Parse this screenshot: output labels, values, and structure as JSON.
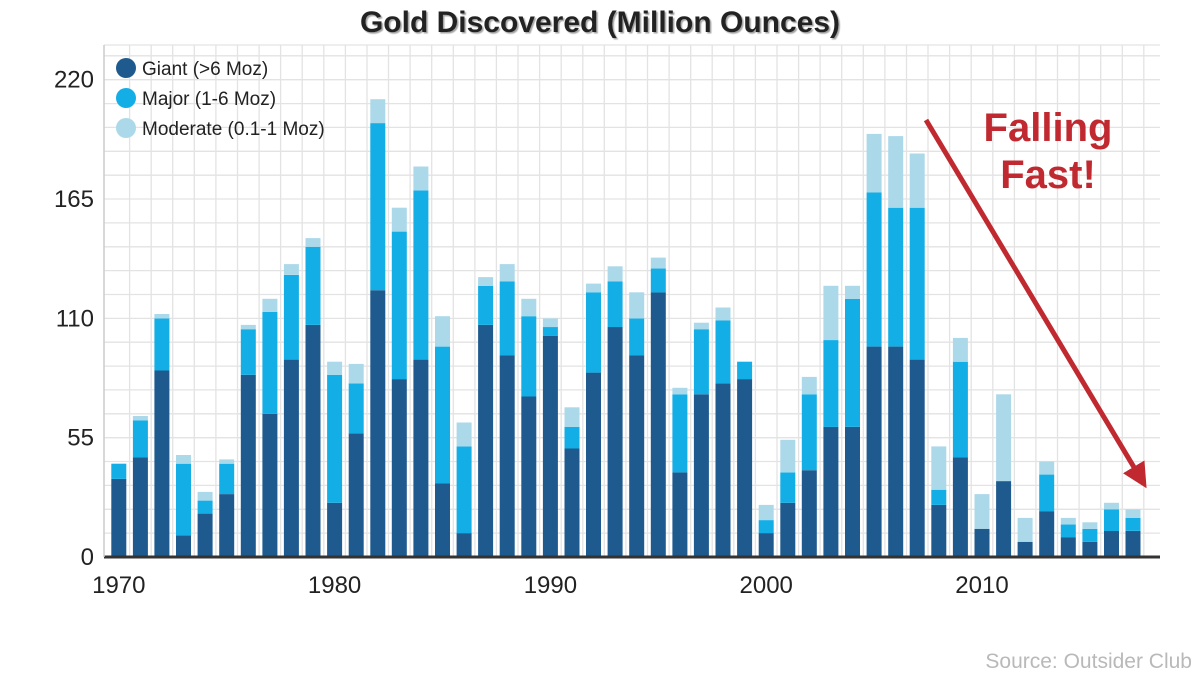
{
  "chart_data": {
    "type": "bar",
    "stacked": true,
    "title": "Gold Discovered (Million Ounces)",
    "xlabel": "",
    "ylabel": "",
    "x": [
      1970,
      1971,
      1972,
      1973,
      1974,
      1975,
      1976,
      1977,
      1978,
      1979,
      1980,
      1981,
      1982,
      1983,
      1984,
      1985,
      1986,
      1987,
      1988,
      1989,
      1990,
      1991,
      1992,
      1993,
      1994,
      1995,
      1996,
      1997,
      1998,
      1999,
      2000,
      2001,
      2002,
      2003,
      2004,
      2005,
      2006,
      2007,
      2008,
      2009,
      2010,
      2011,
      2012,
      2013,
      2014,
      2015,
      2016,
      2017
    ],
    "x_ticks": [
      "1970",
      "1980",
      "1990",
      "2000",
      "2010"
    ],
    "x_tick_values": [
      1970,
      1980,
      1990,
      2000,
      2010
    ],
    "y_ticks": [
      "0",
      "55",
      "110",
      "165",
      "220"
    ],
    "y_tick_values": [
      0,
      55,
      110,
      165,
      220
    ],
    "ylim": [
      0,
      236
    ],
    "grid": true,
    "legend_position": "top-left",
    "series": [
      {
        "name": "Giant (>6 Moz)",
        "color": "#1f5a8e",
        "values": [
          36,
          46,
          86,
          10,
          20,
          29,
          84,
          66,
          91,
          107,
          25,
          57,
          123,
          82,
          91,
          34,
          11,
          107,
          93,
          74,
          102,
          50,
          85,
          106,
          93,
          122,
          39,
          75,
          80,
          82,
          11,
          25,
          40,
          60,
          60,
          97,
          97,
          91,
          24,
          46,
          13,
          35,
          7,
          21,
          9,
          7,
          12,
          12
        ]
      },
      {
        "name": "Major (1-6 Moz)",
        "color": "#13aee6",
        "values": [
          7,
          17,
          24,
          33,
          6,
          14,
          21,
          47,
          39,
          36,
          59,
          23,
          77,
          68,
          78,
          63,
          40,
          18,
          34,
          37,
          4,
          10,
          37,
          21,
          17,
          11,
          36,
          30,
          29,
          8,
          6,
          14,
          35,
          40,
          59,
          71,
          64,
          70,
          7,
          44,
          0,
          0,
          0,
          17,
          6,
          6,
          10,
          6
        ]
      },
      {
        "name": "Moderate (0.1-1 Moz)",
        "color": "#acd9ea",
        "values": [
          0,
          2,
          2,
          4,
          4,
          2,
          2,
          6,
          5,
          4,
          6,
          9,
          11,
          11,
          11,
          14,
          11,
          4,
          8,
          8,
          4,
          9,
          4,
          7,
          12,
          5,
          3,
          3,
          6,
          0,
          7,
          15,
          8,
          25,
          6,
          27,
          33,
          25,
          20,
          11,
          16,
          40,
          11,
          6,
          3,
          3,
          3,
          4
        ]
      }
    ],
    "annotation": {
      "text_lines": [
        "Falling",
        "Fast!"
      ],
      "color": "#c0292f",
      "arrow": true
    }
  },
  "source": "Source: Outsider Club"
}
